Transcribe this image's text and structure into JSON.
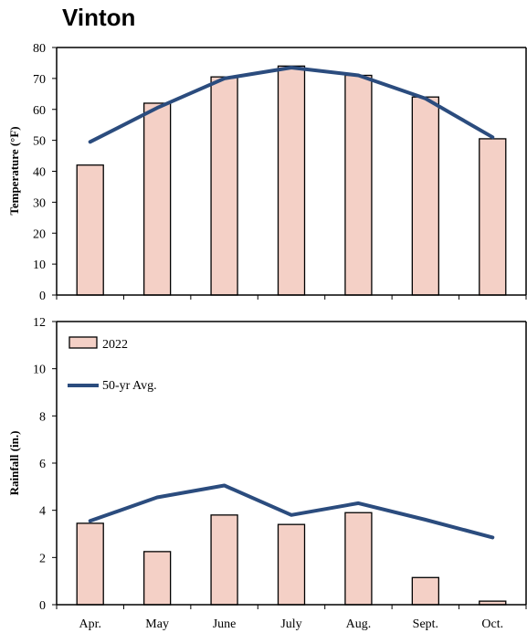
{
  "title": "Vinton",
  "colors": {
    "bar_fill": "#f4d0c6",
    "bar_stroke": "#000000",
    "line": "#2b4c7e",
    "axis": "#000000"
  },
  "chart_data": [
    {
      "type": "bar",
      "categories": [
        "Apr.",
        "May",
        "June",
        "July",
        "Aug.",
        "Sept.",
        "Oct."
      ],
      "ylabel": "Temperature (°F)",
      "ylim": [
        0,
        80
      ],
      "yticks": [
        "0",
        "10",
        "20",
        "30",
        "40",
        "50",
        "60",
        "70",
        "80"
      ],
      "series": [
        {
          "name": "2022",
          "kind": "bar",
          "values": [
            42,
            62,
            70.5,
            74,
            71,
            64,
            50.5
          ]
        },
        {
          "name": "50-yr Avg.",
          "kind": "line",
          "values": [
            49.5,
            60.5,
            70,
            73.5,
            71,
            63.5,
            51
          ]
        }
      ]
    },
    {
      "type": "bar",
      "categories": [
        "Apr.",
        "May",
        "June",
        "July",
        "Aug.",
        "Sept.",
        "Oct."
      ],
      "ylabel": "Rainfall (in.)",
      "ylim": [
        0,
        12
      ],
      "yticks": [
        "0",
        "2",
        "4",
        "6",
        "8",
        "10",
        "12"
      ],
      "legend": "top-left",
      "series": [
        {
          "name": "2022",
          "kind": "bar",
          "values": [
            3.45,
            2.25,
            3.8,
            3.4,
            3.9,
            1.15,
            0.15
          ]
        },
        {
          "name": "50-yr Avg.",
          "kind": "line",
          "values": [
            3.55,
            4.55,
            5.05,
            3.8,
            4.3,
            3.6,
            2.85
          ]
        }
      ]
    }
  ],
  "legend": {
    "bar_label": "2022",
    "line_label": "50-yr Avg."
  }
}
